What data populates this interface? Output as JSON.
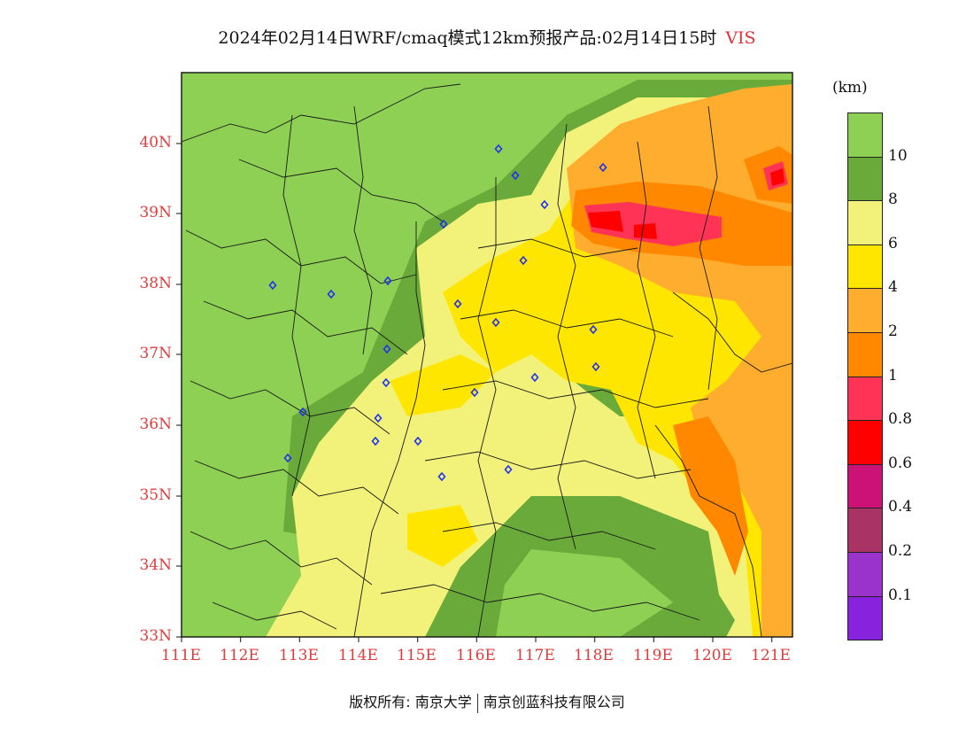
{
  "title": {
    "main": "2024年02月14日WRF/cmaq模式12km预报产品:02月14日15时",
    "variable": "VIS"
  },
  "axes": {
    "x_ticks": [
      "111E",
      "112E",
      "113E",
      "114E",
      "115E",
      "116E",
      "117E",
      "118E",
      "119E",
      "120E",
      "121E"
    ],
    "y_ticks": [
      "33N",
      "34N",
      "35N",
      "36N",
      "37N",
      "38N",
      "39N",
      "40N"
    ]
  },
  "legend": {
    "unit": "(km)",
    "classes": [
      {
        "color": "#8ed053",
        "label": "10"
      },
      {
        "color": "#6aaa3a",
        "label": "8"
      },
      {
        "color": "#f2f27a",
        "label": "6"
      },
      {
        "color": "#ffe600",
        "label": "4"
      },
      {
        "color": "#ffad2e",
        "label": "2"
      },
      {
        "color": "#ff8800",
        "label": "1"
      },
      {
        "color": "#ff3355",
        "label": "0.8"
      },
      {
        "color": "#ff0000",
        "label": "0.6"
      },
      {
        "color": "#cc1177",
        "label": "0.4"
      },
      {
        "color": "#aa3366",
        "label": "0.2"
      },
      {
        "color": "#9933cc",
        "label": "0.1"
      },
      {
        "color": "#8822dd",
        "label": ""
      }
    ]
  },
  "stations_count": 24,
  "footer": {
    "copyright": "版权所有: 南京大学",
    "company": "南京创蓝科技有限公司"
  }
}
